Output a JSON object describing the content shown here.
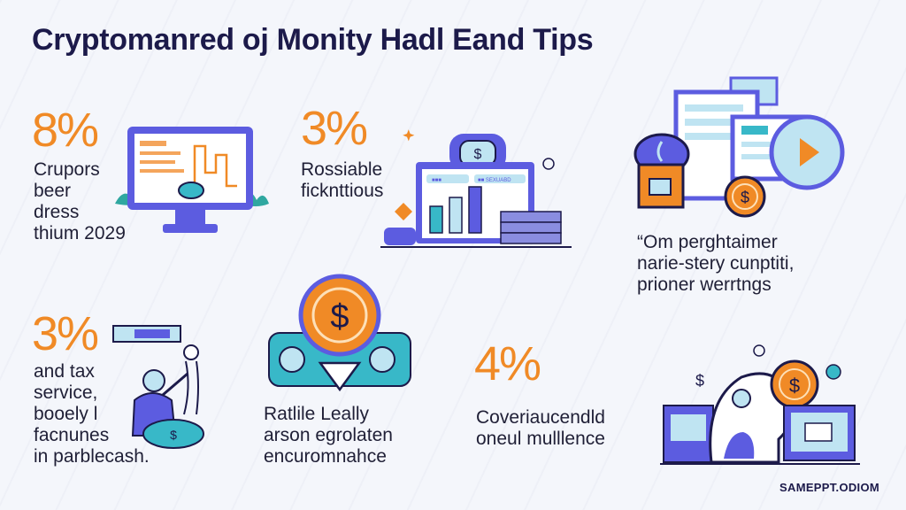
{
  "title": "Cryptomanred oj Monity Hadl Eand Tips",
  "watermark": "SAMEPPT.ODIOM",
  "colors": {
    "accent": "#f08a26",
    "navy": "#1c1a4a",
    "indigo": "#5c5ce0",
    "teal": "#38b8c8",
    "light_blue": "#bfe4f2"
  },
  "cards": [
    {
      "percent": "8%",
      "lines": [
        "Crupors",
        "beer",
        "dress",
        "thium 2029"
      ],
      "icon": "computer-monitor-chart-icon"
    },
    {
      "percent": "3%",
      "lines": [
        "Rossiable",
        "ficknttious"
      ],
      "icon": "dashboard-bar-chart-icon",
      "screen_labels": [
        "■■■",
        "■■ SEXUABD"
      ]
    },
    {
      "percent": "",
      "lines": [
        "“Om perghtaimer",
        "narie-stery cunptiti,",
        "prioner werrtngs"
      ],
      "icon": "multi-device-dollar-icon"
    },
    {
      "percent": "3%",
      "lines": [
        "and tax",
        "service,",
        "booely l",
        "facnunes",
        "in parblecash."
      ],
      "icon": "person-with-coin-icon"
    },
    {
      "percent": "",
      "lines": [
        "Ratlile Leally",
        "arson egrolaten",
        "encuromnahce"
      ],
      "icon": "dollar-coin-arrow-icon"
    },
    {
      "percent": "4%",
      "lines": [
        "Coveriaucendld",
        "oneul mulllence"
      ],
      "icon": "head-silhouette-coin-icon"
    }
  ]
}
